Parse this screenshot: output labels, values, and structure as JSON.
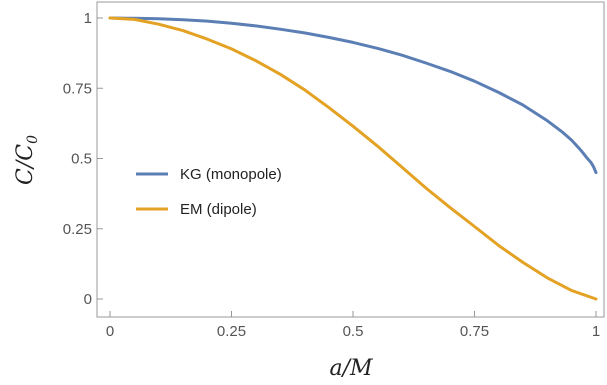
{
  "chart_data": {
    "type": "line",
    "xlabel": "a/M",
    "ylabel": "C/C0",
    "ylabel_parts": {
      "base": "C/C",
      "sub": "0"
    },
    "xlim": [
      0,
      1
    ],
    "ylim": [
      0,
      1
    ],
    "x_ticks": [
      {
        "value": 0,
        "label": "0"
      },
      {
        "value": 0.25,
        "label": "0.25"
      },
      {
        "value": 0.5,
        "label": "0.5"
      },
      {
        "value": 0.75,
        "label": "0.75"
      },
      {
        "value": 1,
        "label": "1"
      }
    ],
    "y_ticks": [
      {
        "value": 0,
        "label": "0"
      },
      {
        "value": 0.25,
        "label": "0.25"
      },
      {
        "value": 0.5,
        "label": "0.5"
      },
      {
        "value": 0.75,
        "label": "0.75"
      },
      {
        "value": 1,
        "label": "1"
      }
    ],
    "grid": false,
    "legend_position": "left-center",
    "series": [
      {
        "name": "KG (monopole)",
        "color": "#5b7fb5",
        "x": [
          0,
          0.05,
          0.1,
          0.15,
          0.2,
          0.25,
          0.3,
          0.35,
          0.4,
          0.45,
          0.5,
          0.55,
          0.6,
          0.65,
          0.7,
          0.75,
          0.8,
          0.85,
          0.9,
          0.93,
          0.95,
          0.97,
          0.98,
          0.99,
          0.995,
          1
        ],
        "y": [
          1,
          0.999,
          0.997,
          0.994,
          0.989,
          0.981,
          0.972,
          0.96,
          0.947,
          0.931,
          0.913,
          0.892,
          0.868,
          0.84,
          0.81,
          0.775,
          0.735,
          0.69,
          0.634,
          0.595,
          0.565,
          0.527,
          0.505,
          0.485,
          0.47,
          0.45
        ]
      },
      {
        "name": "EM (dipole)",
        "color": "#e3a224",
        "x": [
          0,
          0.05,
          0.1,
          0.15,
          0.2,
          0.25,
          0.3,
          0.35,
          0.4,
          0.45,
          0.5,
          0.55,
          0.6,
          0.65,
          0.7,
          0.75,
          0.8,
          0.85,
          0.9,
          0.95,
          1
        ],
        "y": [
          1,
          0.995,
          0.978,
          0.955,
          0.925,
          0.89,
          0.848,
          0.8,
          0.745,
          0.682,
          0.615,
          0.545,
          0.47,
          0.395,
          0.325,
          0.258,
          0.19,
          0.13,
          0.075,
          0.03,
          0
        ]
      }
    ]
  }
}
